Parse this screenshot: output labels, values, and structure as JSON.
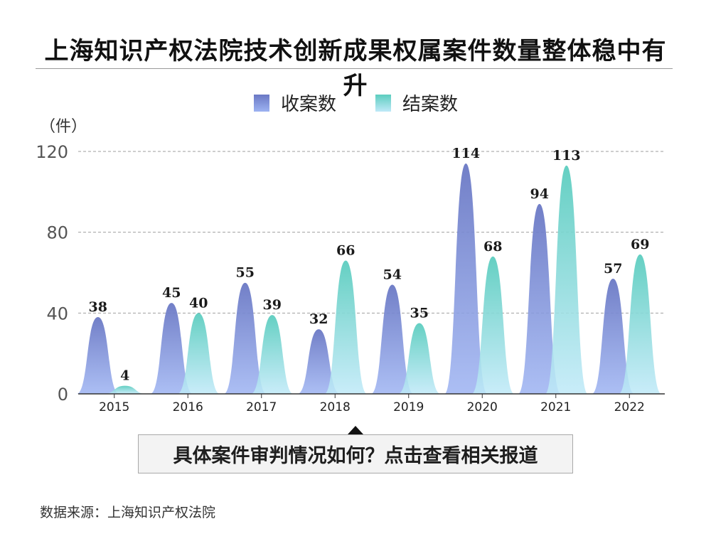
{
  "title": "上海知识产权法院技术创新成果权属案件数量整体稳中有升",
  "unit_label": "（件）",
  "callout_text": "具体案件审判情况如何？点击查看相关报道",
  "source_text": "数据来源：上海知识产权法院",
  "colors": {
    "received_top": "#6a78c4",
    "received_bottom": "#9db3f2",
    "closed_top": "#5ccdbf",
    "closed_bottom": "#bfe9f8"
  },
  "chart_data": {
    "type": "area",
    "categories": [
      "2015",
      "2016",
      "2017",
      "2018",
      "2019",
      "2020",
      "2021",
      "2022"
    ],
    "series": [
      {
        "name": "收案数",
        "values": [
          38,
          45,
          55,
          32,
          54,
          114,
          94,
          57
        ]
      },
      {
        "name": "结案数",
        "values": [
          4,
          40,
          39,
          66,
          35,
          68,
          113,
          69
        ]
      }
    ],
    "ylim": [
      0,
      120
    ],
    "yticks": [
      "0",
      "40",
      "80",
      "120"
    ],
    "ytick_values": [
      0,
      40,
      80,
      120
    ],
    "grid": true,
    "legend": "top-center"
  }
}
